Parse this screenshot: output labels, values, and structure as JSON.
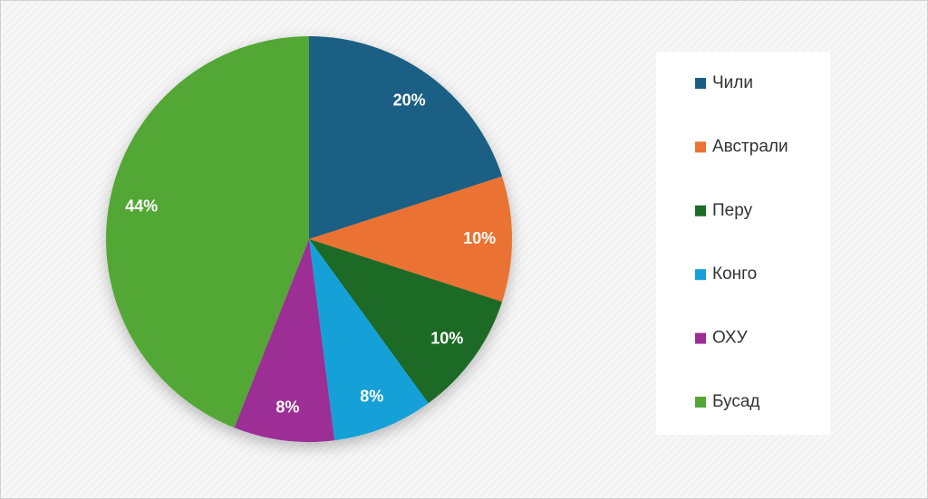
{
  "chart_data": {
    "type": "pie",
    "categories": [
      "Чили",
      "Австрали",
      "Перу",
      "Конго",
      "ОХУ",
      "Бусад"
    ],
    "values": [
      20,
      10,
      10,
      8,
      8,
      44
    ],
    "value_labels": [
      "20%",
      "10%",
      "10%",
      "8%",
      "8%",
      "44%"
    ],
    "colors": [
      "#1b5e84",
      "#ea7232",
      "#1d6b27",
      "#14a0d8",
      "#9c2e95",
      "#53a735"
    ],
    "legend": "right"
  }
}
